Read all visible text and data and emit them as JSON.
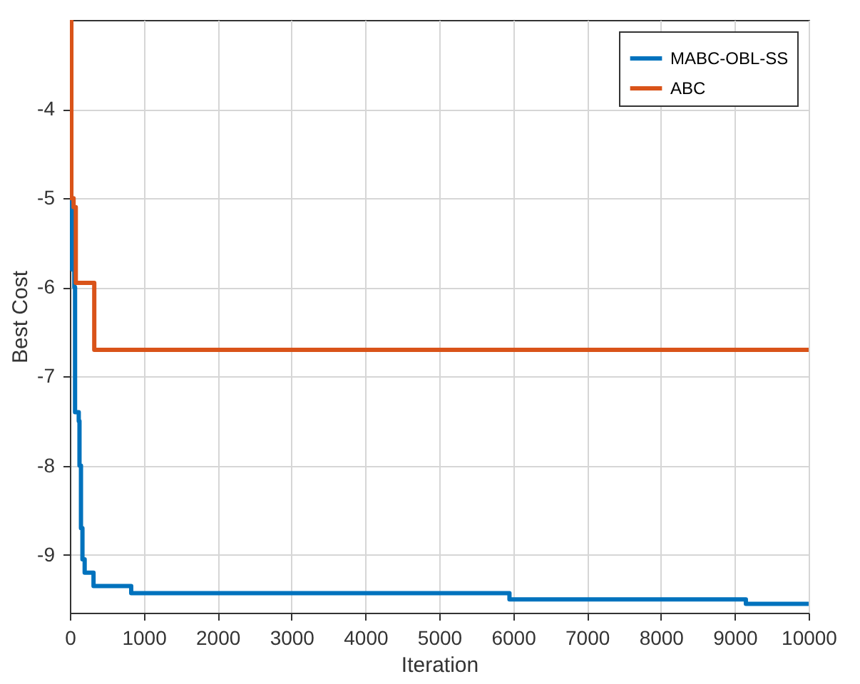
{
  "chart_data": {
    "type": "step",
    "xlabel": "Iteration",
    "ylabel": "Best Cost",
    "xlim": [
      0,
      10000
    ],
    "xticks": [
      0,
      1000,
      2000,
      3000,
      4000,
      5000,
      6000,
      7000,
      8000,
      9000,
      10000
    ],
    "ylim": [
      -9.65,
      -3
    ],
    "yticks": [
      -9,
      -8,
      -7,
      -6,
      -5,
      -4
    ],
    "grid": true,
    "legend": "top right",
    "line_style": "solid",
    "series": [
      {
        "name": "MABC-OBL-SS",
        "color": "#0072bd",
        "x": [
          0,
          30,
          60,
          70,
          120,
          130,
          150,
          170,
          200,
          320,
          830,
          5950,
          9150,
          10000
        ],
        "values": [
          -5,
          -5.8,
          -6,
          -7.4,
          -7.5,
          -8,
          -8.7,
          -9.05,
          -9.2,
          -9.35,
          -9.43,
          -9.5,
          -9.55,
          -9.55
        ]
      },
      {
        "name": "ABC",
        "color": "#d95319",
        "x": [
          0,
          20,
          50,
          80,
          330,
          10000
        ],
        "values": [
          -3,
          -5,
          -5.1,
          -5.95,
          -6.7,
          -6.7
        ]
      }
    ]
  }
}
